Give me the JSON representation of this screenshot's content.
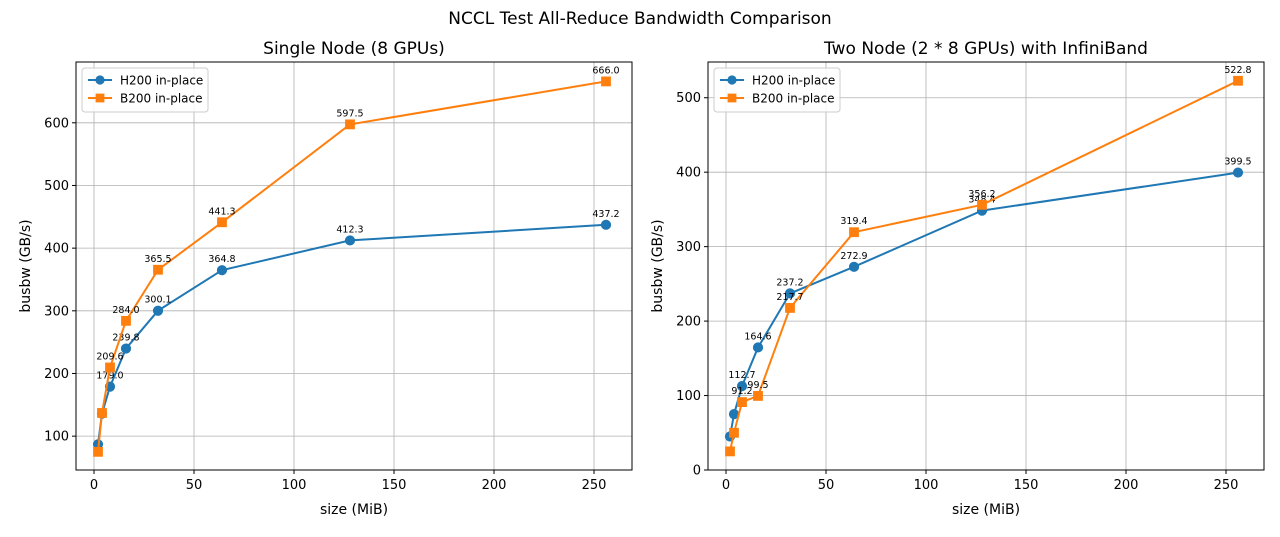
{
  "figure_title": "NCCL Test All-Reduce Bandwidth Comparison",
  "colors": {
    "h200": "#1f77b4",
    "b200": "#ff7f0e",
    "grid": "#b0b0b0",
    "axis": "#000000"
  },
  "chart_data": [
    {
      "type": "line",
      "title": "Single Node (8 GPUs)",
      "xlabel": "size (MiB)",
      "ylabel": "busbw (GB/s)",
      "xlim": [
        -9,
        269
      ],
      "ylim": [
        46,
        697
      ],
      "xticks": [
        0,
        50,
        100,
        150,
        200,
        250
      ],
      "yticks": [
        100,
        200,
        300,
        400,
        500,
        600
      ],
      "grid": true,
      "legend": "top-left",
      "series": [
        {
          "name": "H200 in-place",
          "color": "#1f77b4",
          "marker": "circle",
          "x": [
            2,
            4,
            8,
            16,
            32,
            64,
            128,
            256
          ],
          "y": [
            87,
            136,
            179.0,
            239.8,
            300.1,
            364.8,
            412.3,
            437.2
          ],
          "labels": [
            "",
            "",
            "179.0",
            "239.8",
            "300.1",
            "364.8",
            "412.3",
            "437.2"
          ]
        },
        {
          "name": "B200 in-place",
          "color": "#ff7f0e",
          "marker": "square",
          "x": [
            2,
            4,
            8,
            16,
            32,
            64,
            128,
            256
          ],
          "y": [
            75,
            137,
            209.6,
            284.0,
            365.5,
            441.3,
            597.5,
            666.0
          ],
          "labels": [
            "",
            "",
            "209.6",
            "284.0",
            "365.5",
            "441.3",
            "597.5",
            "666.0"
          ]
        }
      ]
    },
    {
      "type": "line",
      "title": "Two Node (2 * 8 GPUs) with InfiniBand",
      "xlabel": "size (MiB)",
      "ylabel": "busbw (GB/s)",
      "xlim": [
        -9,
        269
      ],
      "ylim": [
        0,
        548
      ],
      "xticks": [
        0,
        50,
        100,
        150,
        200,
        250
      ],
      "yticks": [
        0,
        100,
        200,
        300,
        400,
        500
      ],
      "grid": true,
      "legend": "top-left",
      "series": [
        {
          "name": "H200 in-place",
          "color": "#1f77b4",
          "marker": "circle",
          "x": [
            2,
            4,
            8,
            16,
            32,
            64,
            128,
            256
          ],
          "y": [
            45,
            75,
            112.7,
            164.6,
            237.2,
            272.9,
            348.4,
            399.5
          ],
          "labels": [
            "",
            "",
            "112.7",
            "164.6",
            "237.2",
            "272.9",
            "348.4",
            "399.5"
          ]
        },
        {
          "name": "B200 in-place",
          "color": "#ff7f0e",
          "marker": "square",
          "x": [
            2,
            4,
            8,
            16,
            32,
            64,
            128,
            256
          ],
          "y": [
            25,
            50,
            91.2,
            99.5,
            217.7,
            319.4,
            356.2,
            522.8
          ],
          "labels": [
            "",
            "",
            "91.2",
            "99.5",
            "217.7",
            "319.4",
            "356.2",
            "522.8"
          ]
        }
      ]
    }
  ]
}
